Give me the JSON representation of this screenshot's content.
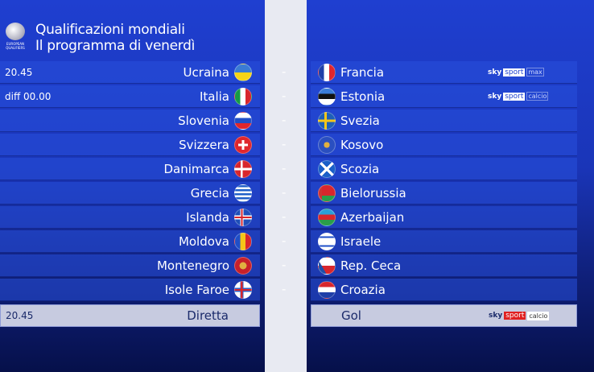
{
  "header": {
    "title_line1": "Qualificazioni mondiali",
    "title_line2": "Il programma di venerdì",
    "logo_text": "EUROPEAN QUALIFIERS"
  },
  "separator": "-",
  "matches": [
    {
      "time": "20.45",
      "home": "Ucraina",
      "home_flag": "linear-gradient(#3a7bd5 50%,#f7d417 50%)",
      "away": "Francia",
      "away_flag": "linear-gradient(90deg,#1f3fa8 33%,#fff 33% 66%,#e0262c 66%)",
      "channel": {
        "sky": "sky",
        "sport": "sport",
        "sub": "max"
      }
    },
    {
      "time": "diff 00.00",
      "home": "Italia",
      "home_flag": "linear-gradient(90deg,#169b46 33%,#fff 33% 66%,#d8262c 66%)",
      "away": "Estonia",
      "away_flag": "linear-gradient(#3b7dd8 33%,#111 33% 66%,#fff 66%)",
      "channel": {
        "sky": "sky",
        "sport": "sport",
        "sub": "calcio"
      }
    },
    {
      "time": "",
      "home": "Slovenia",
      "home_flag": "linear-gradient(#fff 33%,#1f4fc8 33% 66%,#e0262c 66%)",
      "away": "Svezia",
      "away_flag": "linear-gradient(90deg,transparent 35%,#f5c518 35% 50%,transparent 50%),linear-gradient(transparent 42%,#f5c518 42% 58%,transparent 58%),#1e5fb8"
    },
    {
      "time": "",
      "home": "Svizzera",
      "home_flag": "linear-gradient(90deg,transparent 42%,#fff 42% 58%,transparent 58%) center/100% 60% no-repeat,linear-gradient(transparent 42%,#fff 42% 58%,transparent 58%) center/60% 100% no-repeat,#e0262c",
      "away": "Kosovo",
      "away_flag": "radial-gradient(circle,#e0b040 25%,#2a4fc0 26%)"
    },
    {
      "time": "",
      "home": "Danimarca",
      "home_flag": "linear-gradient(90deg,transparent 35%,#fff 35% 48%,transparent 48%),linear-gradient(transparent 43%,#fff 43% 57%,transparent 57%),#d8262c",
      "away": "Scozia",
      "away_flag": "linear-gradient(45deg,transparent 44%,#fff 44% 56%,transparent 56%),linear-gradient(-45deg,transparent 44%,#fff 44% 56%,transparent 56%),#1a5fc8"
    },
    {
      "time": "",
      "home": "Grecia",
      "home_flag": "repeating-linear-gradient(#1f5fc8 0 2.5px,#fff 2.5px 5px)",
      "away": "Bielorussia",
      "away_flag": "linear-gradient(90deg,#c33 20%,transparent 20%),linear-gradient(#d8262c 66%,#2a9d4a 66%)"
    },
    {
      "time": "",
      "home": "Islanda",
      "home_flag": "linear-gradient(90deg,transparent 38%,#d8262c 38% 48%,transparent 48%),linear-gradient(transparent 44%,#d8262c 44% 56%,transparent 56%),linear-gradient(90deg,transparent 33%,#fff 33% 53%,transparent 53%),linear-gradient(transparent 38%,#fff 38% 62%,transparent 62%),#1f4fb8",
      "away": "Azerbaijan",
      "away_flag": "linear-gradient(#2aa0d8 33%,#d8262c 33% 66%,#2a9d4a 66%)"
    },
    {
      "time": "",
      "home": "Moldova",
      "home_flag": "linear-gradient(90deg,#1f4fc8 33%,#f5c518 33% 66%,#d8262c 66%)",
      "away": "Israele",
      "away_flag": "linear-gradient(transparent 18%,#1f4fc8 18% 28%,transparent 28% 72%,#1f4fc8 72% 82%,transparent 82%),#fff"
    },
    {
      "time": "",
      "home": "Montenegro",
      "home_flag": "radial-gradient(circle,#e0b040 30%,#c8202a 32%)",
      "away": "Rep. Ceca",
      "away_flag": "linear-gradient(60deg,#1f4fa8 30%,transparent 30%),linear-gradient(#fff 50%,#d8262c 50%)"
    },
    {
      "time": "",
      "home": "Isole Faroe",
      "home_flag": "linear-gradient(90deg,transparent 36%,#d8262c 36% 48%,transparent 48%),linear-gradient(transparent 44%,#d8262c 44% 56%,transparent 56%),linear-gradient(90deg,transparent 32%,#2a5fc8 32% 52%,transparent 52%),linear-gradient(transparent 38%,#2a5fc8 38% 62%,transparent 62%),#fff",
      "away": "Croazia",
      "away_flag": "linear-gradient(#d8262c 33%,#fff 33% 66%,#1f3fa8 66%)"
    }
  ],
  "final": {
    "time": "20.45",
    "home": "Diretta",
    "away": "Gol",
    "channel": {
      "sky": "sky",
      "sport": "sport",
      "sub": "calcio"
    }
  }
}
